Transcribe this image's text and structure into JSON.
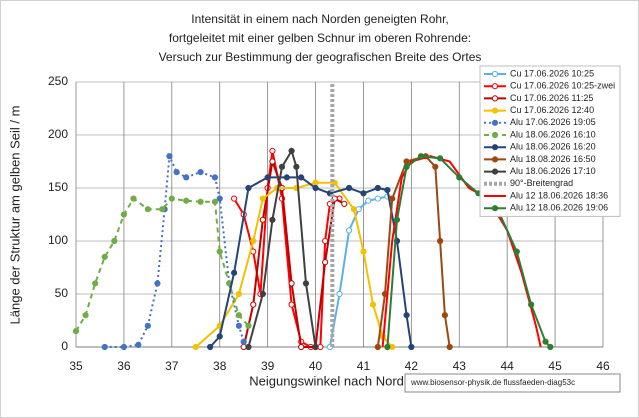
{
  "chart_data": {
    "type": "line",
    "title": [
      "Intensität in einem nach Norden geneigten Rohr,",
      "fortgeleitet mit einer gelben Schnur im oberen Rohrende:",
      "Versuch zur Bestimmung der geografischen Breite des Ortes"
    ],
    "x_label": "Neigungswinkel nach Norden  /°",
    "y_label": "Länge der Struktur am gelben Seil / m",
    "note": "www.biosensor-physik.de  flussfaeden-diag53c",
    "xlim": [
      35,
      46
    ],
    "xticks": [
      35,
      36,
      37,
      38,
      39,
      40,
      41,
      42,
      43,
      44,
      45,
      46
    ],
    "ylim": [
      0,
      250
    ],
    "yticks": [
      0,
      50,
      100,
      150,
      200,
      250
    ],
    "grid": true,
    "legend": "top-right",
    "series": [
      {
        "name": "Cu 17.06.2026  10:25",
        "color": "#5bb0e8",
        "line_style": "solid",
        "marker": "open-circle",
        "x": [
          40.3,
          40.5,
          40.7,
          40.9,
          41.1,
          41.3,
          41.5
        ],
        "values": [
          0,
          50,
          110,
          130,
          138,
          140,
          142
        ]
      },
      {
        "name": "Cu 17.06.2026  10:25-zwei",
        "color": "#ff0000",
        "line_style": "solid",
        "marker": "open-circle",
        "x": [
          38.3,
          38.5,
          38.7,
          38.85,
          39.0,
          39.1,
          39.3,
          39.5,
          39.7,
          39.9,
          40.1,
          40.2,
          40.3,
          40.5
        ],
        "values": [
          140,
          125,
          90,
          50,
          150,
          185,
          140,
          40,
          5,
          0,
          0,
          100,
          135,
          140
        ]
      },
      {
        "name": "Cu 17.06.2026  11:25",
        "color": "#c00000",
        "line_style": "solid",
        "marker": "open-circle",
        "x": [
          38.5,
          38.7,
          38.9,
          39.1,
          39.3,
          39.5,
          39.7,
          40.0,
          40.2,
          40.4,
          40.6
        ],
        "values": [
          0,
          40,
          120,
          175,
          150,
          60,
          0,
          0,
          80,
          140,
          135
        ]
      },
      {
        "name": "Cu 17.06.2026  12:40",
        "color": "#f5c000",
        "line_style": "solid",
        "marker": "circle",
        "x": [
          37.5,
          38.0,
          38.4,
          38.7,
          38.9,
          39.2,
          39.6,
          40.0,
          40.4,
          40.8,
          41.0,
          41.2,
          41.4,
          41.6
        ],
        "values": [
          0,
          20,
          50,
          100,
          140,
          150,
          150,
          155,
          155,
          130,
          90,
          40,
          10,
          0
        ]
      },
      {
        "name": "Alu 17.06.2026  19:05",
        "color": "#4472c4",
        "line_style": "dotted",
        "marker": "circle",
        "x": [
          35.6,
          36.0,
          36.3,
          36.5,
          36.7,
          36.85,
          36.95,
          37.1,
          37.3,
          37.6,
          37.9,
          38.0,
          38.2,
          38.4,
          38.5
        ],
        "values": [
          0,
          0,
          2,
          20,
          60,
          130,
          180,
          165,
          160,
          165,
          160,
          140,
          60,
          20,
          5
        ]
      },
      {
        "name": "Alu 18.06.2026  16:10",
        "color": "#70ad47",
        "line_style": "dashed",
        "marker": "circle",
        "x": [
          35.0,
          35.2,
          35.4,
          35.6,
          35.8,
          36.0,
          36.2,
          36.5,
          36.8,
          37.0,
          37.3,
          37.6,
          37.9,
          38.0,
          38.2,
          38.4,
          38.6
        ],
        "values": [
          15,
          30,
          60,
          85,
          100,
          125,
          140,
          130,
          130,
          140,
          138,
          137,
          137,
          90,
          60,
          30,
          20
        ]
      },
      {
        "name": "Alu 18.06.2026  16:20",
        "color": "#264478",
        "line_style": "solid",
        "marker": "circle",
        "x": [
          37.8,
          38.0,
          38.3,
          38.6,
          39.0,
          39.4,
          39.7,
          40.0,
          40.3,
          40.7,
          41.0,
          41.3,
          41.5,
          41.7,
          41.9,
          42.0
        ],
        "values": [
          0,
          10,
          70,
          150,
          160,
          160,
          160,
          150,
          145,
          150,
          145,
          150,
          148,
          100,
          30,
          0
        ]
      },
      {
        "name": "Alu 18.08.2026  16:50",
        "color": "#9e480e",
        "line_style": "solid",
        "marker": "circle",
        "x": [
          41.3,
          41.45,
          41.6,
          41.9,
          42.3,
          42.5,
          42.6,
          42.7,
          42.8
        ],
        "values": [
          0,
          50,
          140,
          175,
          180,
          170,
          100,
          30,
          0
        ]
      },
      {
        "name": "Alu 18.06.2026  17:10",
        "color": "#404040",
        "line_style": "solid",
        "marker": "circle",
        "x": [
          38.6,
          38.9,
          39.1,
          39.3,
          39.5,
          39.6,
          39.8,
          40.0
        ],
        "values": [
          0,
          50,
          120,
          170,
          185,
          170,
          60,
          0
        ]
      },
      {
        "name": "90°-Breitengrad",
        "color": "#a6a6a6",
        "line_style": "thick-dashed",
        "marker": "none",
        "x": [
          40.35,
          40.35
        ],
        "values": [
          0,
          250
        ]
      },
      {
        "name": "Alu 12 18.06.2026 18:36",
        "color": "#ff0000",
        "line_style": "solid",
        "marker": "none",
        "x": [
          41.4,
          41.6,
          41.8,
          42.0,
          42.4,
          42.8,
          43.2,
          43.6,
          44.0,
          44.3,
          44.6,
          44.7
        ],
        "values": [
          0,
          100,
          160,
          175,
          180,
          175,
          150,
          140,
          110,
          70,
          20,
          0
        ]
      },
      {
        "name": "Alu 12 18.06.2026 19:06",
        "color": "#2e7d32",
        "line_style": "solid",
        "marker": "circle",
        "x": [
          41.5,
          41.7,
          41.9,
          42.2,
          42.6,
          43.0,
          43.4,
          43.8,
          44.2,
          44.5,
          44.8,
          44.9
        ],
        "values": [
          0,
          120,
          170,
          180,
          178,
          160,
          145,
          130,
          90,
          40,
          5,
          0
        ]
      }
    ]
  }
}
